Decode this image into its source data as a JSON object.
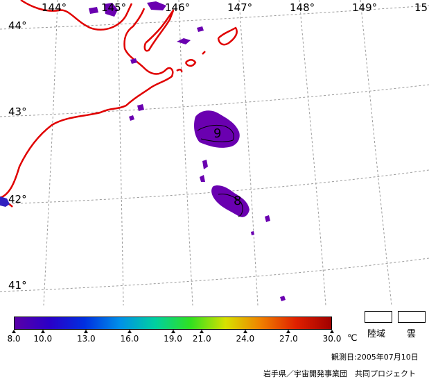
{
  "map": {
    "longitude_labels": [
      "144°",
      "145°",
      "146°",
      "147°",
      "148°",
      "149°",
      "15"
    ],
    "latitude_labels": [
      "44°",
      "43°",
      "42°",
      "41°"
    ],
    "contour_labels": [
      "9",
      "8"
    ]
  },
  "colorbar": {
    "tick_labels": [
      "8.0",
      "10.0",
      "13.0",
      "16.0",
      "19.0",
      "21.0",
      "24.0",
      "27.0",
      "30.0"
    ],
    "unit": "℃",
    "range": [
      8.0,
      30.0
    ],
    "colors": [
      "#5a00a8",
      "#2a00c8",
      "#0030e0",
      "#0090e8",
      "#00d0a0",
      "#30e020",
      "#d8e000",
      "#f08000",
      "#e02000",
      "#a00000"
    ]
  },
  "legend": {
    "land_label": "陸域",
    "cloud_label": "雲"
  },
  "credits": {
    "observation_date": "観測日:2005年07月10日",
    "organization": "岩手県／宇宙開発事業団　共同プロジェクト"
  },
  "colors": {
    "coastline": "#e00000",
    "sst_cold": "#6a00b0",
    "grid": "#999999"
  }
}
